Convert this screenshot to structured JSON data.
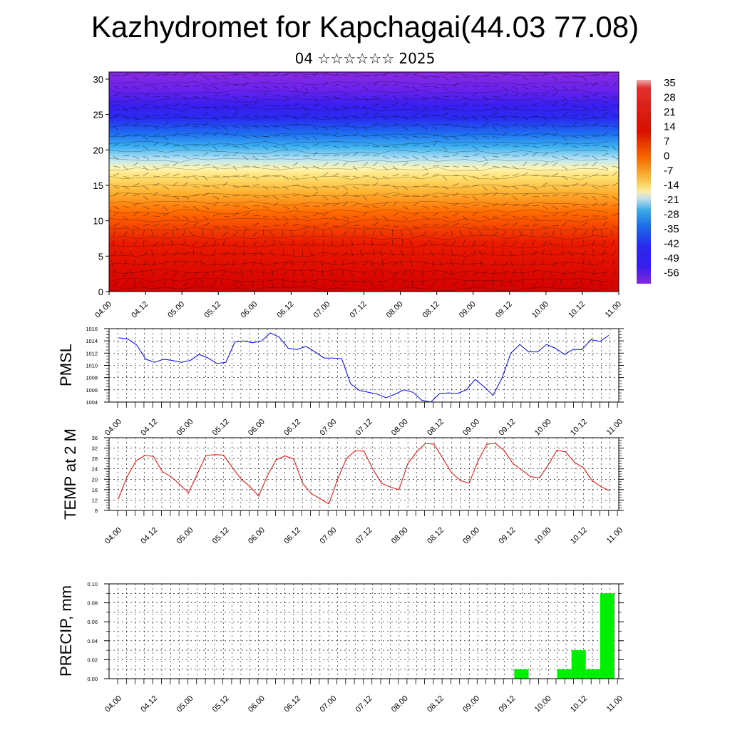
{
  "title": "Kazhydromet for Kapchagai(44.03 77.08)",
  "subtitle": "04 ☆☆☆☆☆☆ 2025",
  "chart_data": [
    {
      "type": "heatmap",
      "ylim": [
        0,
        31
      ],
      "yticks": [
        0,
        5,
        10,
        15,
        20,
        25,
        30
      ],
      "xtick_labels": [
        "04.00",
        "04.12",
        "05.00",
        "05.12",
        "06.00",
        "06.12",
        "07.00",
        "07.12",
        "08.00",
        "08.12",
        "09.00",
        "09.12",
        "10.00",
        "10.12",
        "11.00"
      ],
      "colorbar_labels": [
        "35",
        "28",
        "21",
        "14",
        "7",
        "0",
        "-7",
        "-14",
        "-21",
        "-28",
        "-35",
        "-42",
        "-49",
        "-56"
      ],
      "colors": {
        "warm": "#d40000",
        "mid": "#ffd24a",
        "cold": "#3a1ff0",
        "top": "#8a2be2"
      }
    },
    {
      "type": "line",
      "ylabel": "PMSL",
      "ylim": [
        1004,
        1016
      ],
      "yticks": [
        "1004",
        "1006",
        "1008",
        "1010",
        "1012",
        "1014",
        "1016"
      ],
      "xtick_labels": [
        "04.00",
        "04.12",
        "05.00",
        "05.12",
        "06.00",
        "06.12",
        "07.00",
        "07.12",
        "08.00",
        "08.12",
        "09.00",
        "09.12",
        "10.00",
        "10.12",
        "11.00"
      ],
      "series": [
        {
          "color": "#0000ff",
          "values": [
            1014.5,
            1014.3,
            1013.3,
            1011.0,
            1010.5,
            1011.0,
            1010.8,
            1010.5,
            1010.8,
            1011.8,
            1011.2,
            1010.3,
            1010.5,
            1013.8,
            1014.0,
            1013.7,
            1014.0,
            1015.3,
            1014.6,
            1012.8,
            1012.6,
            1013.1,
            1012.2,
            1011.2,
            1011.2,
            1011.1,
            1007.0,
            1005.9,
            1005.6,
            1005.3,
            1004.7,
            1005.3,
            1006.0,
            1005.6,
            1004.3,
            1004.0,
            1005.4,
            1005.5,
            1005.4,
            1006.0,
            1007.7,
            1006.5,
            1005.1,
            1007.9,
            1012.0,
            1013.4,
            1012.2,
            1012.2,
            1013.4,
            1012.8,
            1011.8,
            1012.6,
            1012.6,
            1014.2,
            1013.9,
            1014.9
          ]
        }
      ]
    },
    {
      "type": "line",
      "ylabel": "TEMP at 2 M",
      "ylim": [
        8,
        36
      ],
      "yticks": [
        "8",
        "12",
        "16",
        "20",
        "24",
        "28",
        "32",
        "36"
      ],
      "xtick_labels": [
        "04.00",
        "04.12",
        "05.00",
        "05.12",
        "06.00",
        "06.12",
        "07.00",
        "07.12",
        "08.00",
        "08.12",
        "09.00",
        "09.12",
        "10.00",
        "10.12",
        "11.00"
      ],
      "series": [
        {
          "color": "#ff0000",
          "values": [
            12.5,
            21.0,
            27.0,
            29.2,
            28.8,
            23.0,
            21.0,
            18.0,
            14.8,
            22.0,
            29.2,
            29.5,
            29.3,
            24.5,
            20.0,
            17.2,
            13.5,
            21.5,
            27.5,
            29.0,
            27.8,
            18.5,
            14.5,
            12.5,
            10.5,
            20.0,
            28.0,
            31.0,
            30.8,
            24.0,
            18.5,
            17.0,
            16.0,
            26.0,
            30.5,
            33.8,
            33.5,
            28.0,
            22.5,
            19.5,
            18.5,
            27.0,
            33.5,
            33.8,
            31.0,
            26.0,
            23.5,
            21.0,
            20.5,
            25.5,
            31.2,
            30.5,
            26.5,
            24.5,
            19.5,
            17.2,
            15.5
          ]
        }
      ]
    },
    {
      "type": "bar",
      "ylabel": "PRECIP, mm",
      "ylim": [
        0,
        0.1
      ],
      "yticks": [
        "0.00",
        "0.02",
        "0.04",
        "0.06",
        "0.08",
        "0.10"
      ],
      "xtick_labels": [
        "04.00",
        "04.12",
        "05.00",
        "05.12",
        "06.00",
        "06.12",
        "07.00",
        "07.12",
        "08.00",
        "08.12",
        "09.00",
        "09.12",
        "10.00",
        "10.12",
        "11.00"
      ],
      "series": [
        {
          "color": "#00ee00",
          "bars": [
            {
              "x": [
                9.6,
                9.8
              ],
              "value": 0.01
            },
            {
              "x": [
                10.2,
                10.4
              ],
              "value": 0.01
            },
            {
              "x": [
                10.4,
                10.6
              ],
              "value": 0.03
            },
            {
              "x": [
                10.6,
                10.8
              ],
              "value": 0.01
            },
            {
              "x": [
                10.8,
                11.0
              ],
              "value": 0.09
            }
          ]
        }
      ]
    }
  ]
}
